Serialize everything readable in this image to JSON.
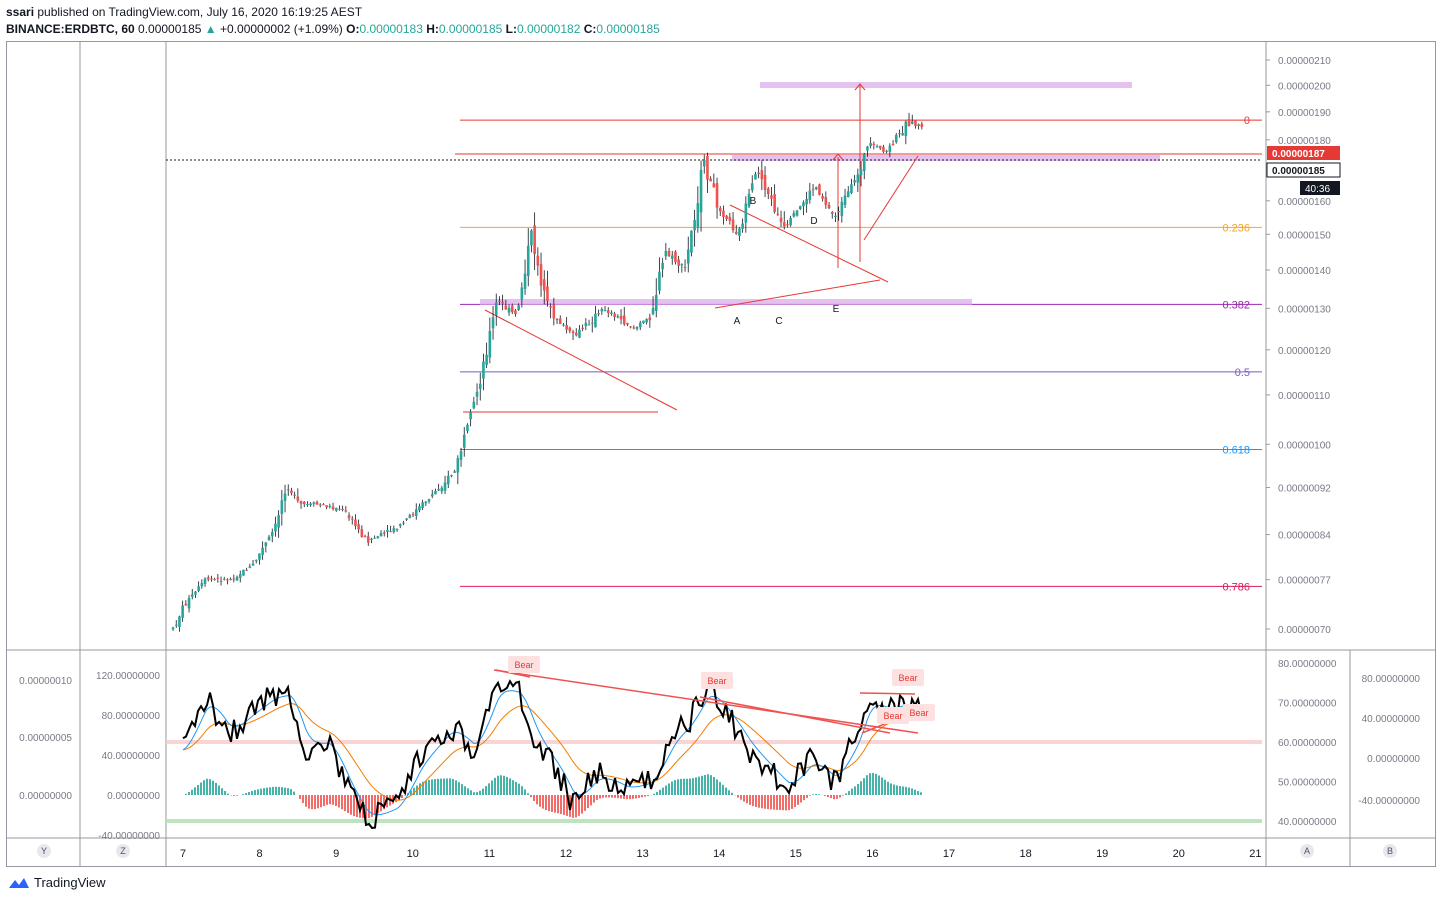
{
  "header": {
    "publisher": "ssari",
    "published_text": " published on TradingView.com, July 16, 2020 16:19:25 AEST",
    "symbol": "BINANCE:ERDBTC, 60",
    "last": "0.00000185",
    "change": "+0.00000002 (+1.09%)",
    "o_label": "O:",
    "o_value": "0.00000183",
    "h_label": "H:",
    "h_value": "0.00000185",
    "l_label": "L:",
    "l_value": "0.00000182",
    "c_label": "C:",
    "c_value": "0.00000185"
  },
  "colors": {
    "up": "#26a69a",
    "down": "#ef5350",
    "frame": "#9598a1",
    "trend": "#e53935",
    "zone": "#d9a6e8"
  },
  "chart_data": [
    {
      "type": "candlestick",
      "title": "BINANCE:ERDBTC, 60",
      "x_tick_labels": [
        "7",
        "8",
        "9",
        "10",
        "11",
        "12",
        "13",
        "14",
        "15",
        "16",
        "17",
        "18",
        "19",
        "20",
        "21"
      ],
      "y_tick_labels": [
        "0.00000210",
        "0.00000200",
        "0.00000190",
        "0.00000180",
        "0.00000170",
        "0.00000160",
        "0.00000150",
        "0.00000140",
        "0.00000130",
        "0.00000120",
        "0.00000110",
        "0.00000100",
        "0.00000092",
        "0.00000084",
        "0.00000077",
        "0.00000070"
      ],
      "price_path": [
        {
          "x": 6.87,
          "y": 7e-07
        },
        {
          "x": 7.0,
          "y": 7.3e-07
        },
        {
          "x": 7.3,
          "y": 7.7e-07
        },
        {
          "x": 7.6,
          "y": 7.7e-07
        },
        {
          "x": 7.9,
          "y": 7.9e-07
        },
        {
          "x": 8.2,
          "y": 8.5e-07
        },
        {
          "x": 8.35,
          "y": 9.3e-07
        },
        {
          "x": 8.5,
          "y": 8.9e-07
        },
        {
          "x": 8.8,
          "y": 8.9e-07
        },
        {
          "x": 9.1,
          "y": 8.8e-07
        },
        {
          "x": 9.4,
          "y": 8.3e-07
        },
        {
          "x": 9.8,
          "y": 8.5e-07
        },
        {
          "x": 10.2,
          "y": 9e-07
        },
        {
          "x": 10.55,
          "y": 9.5e-07
        },
        {
          "x": 10.75,
          "y": 1.05e-06
        },
        {
          "x": 10.9,
          "y": 1.15e-06
        },
        {
          "x": 11.1,
          "y": 1.32e-06
        },
        {
          "x": 11.35,
          "y": 1.28e-06
        },
        {
          "x": 11.55,
          "y": 1.5e-06
        },
        {
          "x": 11.75,
          "y": 1.3e-06
        },
        {
          "x": 12.1,
          "y": 1.23e-06
        },
        {
          "x": 12.5,
          "y": 1.3e-06
        },
        {
          "x": 12.9,
          "y": 1.25e-06
        },
        {
          "x": 13.1,
          "y": 1.28e-06
        },
        {
          "x": 13.3,
          "y": 1.45e-06
        },
        {
          "x": 13.55,
          "y": 1.4e-06
        },
        {
          "x": 13.8,
          "y": 1.72e-06
        },
        {
          "x": 14.0,
          "y": 1.58e-06
        },
        {
          "x": 14.25,
          "y": 1.5e-06
        },
        {
          "x": 14.5,
          "y": 1.7e-06
        },
        {
          "x": 14.85,
          "y": 1.51e-06
        },
        {
          "x": 15.25,
          "y": 1.65e-06
        },
        {
          "x": 15.5,
          "y": 1.55e-06
        },
        {
          "x": 15.75,
          "y": 1.65e-06
        },
        {
          "x": 15.95,
          "y": 1.78e-06
        },
        {
          "x": 16.2,
          "y": 1.76e-06
        },
        {
          "x": 16.45,
          "y": 1.86e-06
        },
        {
          "x": 16.65,
          "y": 1.85e-06
        }
      ],
      "fib_levels": [
        {
          "label": "0",
          "value": 1.87e-06
        },
        {
          "label": "0.236",
          "value": 1.52e-06
        },
        {
          "label": "0.382",
          "value": 1.31e-06
        },
        {
          "label": "0.5",
          "value": 1.15e-06
        },
        {
          "label": "0.618",
          "value": 9.9e-07
        },
        {
          "label": "0.786",
          "value": 7.6e-07
        }
      ],
      "pattern_labels": [
        "A",
        "B",
        "C",
        "D",
        "E"
      ],
      "price_tags": {
        "last_price": "0.00000187",
        "current": "0.00000185",
        "countdown": "40:36"
      }
    },
    {
      "type": "line",
      "title": "Oscillator",
      "left_axis_a": [
        "0.00000010",
        "0.00000005",
        "0.00000000"
      ],
      "left_axis_b": [
        "120.00000000",
        "80.00000000",
        "40.00000000",
        "0.00000000",
        "-40.00000000"
      ],
      "right_axis_a": [
        "80.00000000",
        "70.00000000",
        "60.00000000",
        "50.00000000",
        "40.00000000"
      ],
      "right_axis_b": [
        "80.00000000",
        "40.00000000",
        "0.00000000",
        "-40.00000000"
      ],
      "annotations": [
        "Bear",
        "Bear",
        "Bear",
        "Bear",
        "Bear"
      ],
      "rsi_path": [
        {
          "x": 7.0,
          "y": 58
        },
        {
          "x": 7.3,
          "y": 72
        },
        {
          "x": 7.6,
          "y": 62
        },
        {
          "x": 7.9,
          "y": 68
        },
        {
          "x": 8.2,
          "y": 72
        },
        {
          "x": 8.4,
          "y": 72
        },
        {
          "x": 8.6,
          "y": 58
        },
        {
          "x": 8.9,
          "y": 60
        },
        {
          "x": 9.2,
          "y": 46
        },
        {
          "x": 9.4,
          "y": 40
        },
        {
          "x": 9.8,
          "y": 44
        },
        {
          "x": 10.1,
          "y": 56
        },
        {
          "x": 10.5,
          "y": 64
        },
        {
          "x": 10.8,
          "y": 58
        },
        {
          "x": 11.1,
          "y": 75
        },
        {
          "x": 11.4,
          "y": 72
        },
        {
          "x": 11.6,
          "y": 60
        },
        {
          "x": 11.9,
          "y": 52
        },
        {
          "x": 12.1,
          "y": 44
        },
        {
          "x": 12.4,
          "y": 52
        },
        {
          "x": 12.8,
          "y": 48
        },
        {
          "x": 13.1,
          "y": 50
        },
        {
          "x": 13.4,
          "y": 62
        },
        {
          "x": 13.6,
          "y": 65
        },
        {
          "x": 13.85,
          "y": 74
        },
        {
          "x": 14.1,
          "y": 67
        },
        {
          "x": 14.4,
          "y": 58
        },
        {
          "x": 14.7,
          "y": 52
        },
        {
          "x": 14.9,
          "y": 48
        },
        {
          "x": 15.2,
          "y": 56
        },
        {
          "x": 15.5,
          "y": 50
        },
        {
          "x": 15.8,
          "y": 62
        },
        {
          "x": 15.95,
          "y": 72
        },
        {
          "x": 16.2,
          "y": 68
        },
        {
          "x": 16.45,
          "y": 70
        },
        {
          "x": 16.65,
          "y": 67
        }
      ]
    }
  ],
  "footer": {
    "brand": "TradingView",
    "btn_y": "Y",
    "btn_z": "Z",
    "btn_a": "A",
    "btn_b": "B"
  }
}
